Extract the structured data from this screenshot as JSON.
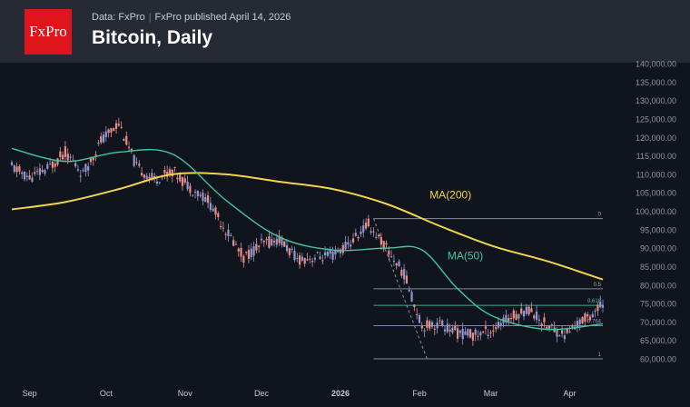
{
  "header": {
    "logo_text": "FxPro",
    "source": "Data: FxPro",
    "published": "FxPro published April 14, 2026",
    "title": "Bitcoin, Daily"
  },
  "colors": {
    "header_bg": "#252a34",
    "plot_bg": "#10141d",
    "logo_bg": "#e0141b",
    "candle_up": "#8f99cf",
    "candle_down": "#e88d8a",
    "ma200": "#f2d44a",
    "ma50": "#3ec79a",
    "fib_line": "#9aa0a8",
    "fib_0618": "#3ec79a",
    "fib_0764": "#8f99cf"
  },
  "chart_data": {
    "type": "line",
    "instrument": "Bitcoin",
    "timeframe": "Daily",
    "x_axis": {
      "ticks": [
        "Sep",
        "Oct",
        "Nov",
        "Dec",
        "2026",
        "Feb",
        "Mar",
        "Apr"
      ],
      "start": "2025-08-25",
      "end": "2026-04-14"
    },
    "y_axis": {
      "ylim": [
        60000,
        140000
      ],
      "step": 5000,
      "position": "right",
      "ticks": [
        "140,000.00",
        "135,000.00",
        "130,000.00",
        "125,000.00",
        "120,000.00",
        "115,000.00",
        "110,000.00",
        "105,000.00",
        "100,000.00",
        "95,000.00",
        "90,000.00",
        "85,000.00",
        "80,000.00",
        "75,000.00",
        "70,000.00",
        "65,000.00",
        "60,000.00"
      ]
    },
    "price_series": {
      "name": "",
      "dates": [
        "2025-08-25",
        "2025-09-01",
        "2025-09-08",
        "2025-09-15",
        "2025-09-22",
        "2025-09-29",
        "2025-10-06",
        "2025-10-13",
        "2025-10-20",
        "2025-10-27",
        "2025-11-03",
        "2025-11-10",
        "2025-11-17",
        "2025-11-24",
        "2025-12-01",
        "2025-12-08",
        "2025-12-15",
        "2025-12-22",
        "2025-12-29",
        "2026-01-05",
        "2026-01-12",
        "2026-01-19",
        "2026-01-26",
        "2026-02-02",
        "2026-02-09",
        "2026-02-16",
        "2026-02-23",
        "2026-03-02",
        "2026-03-09",
        "2026-03-16",
        "2026-03-23",
        "2026-03-30",
        "2026-04-06",
        "2026-04-14"
      ],
      "values": [
        112000,
        109000,
        111500,
        116000,
        110000,
        119000,
        124000,
        112000,
        108500,
        111000,
        106500,
        103000,
        95000,
        87500,
        91000,
        92500,
        87000,
        87500,
        88000,
        91500,
        96500,
        90000,
        83000,
        69000,
        69500,
        67000,
        66500,
        68000,
        71500,
        73500,
        69000,
        66500,
        70500,
        74500
      ]
    },
    "ma200": {
      "name": "MA(200)",
      "dates": [
        "2025-08-25",
        "2025-09-15",
        "2025-10-06",
        "2025-10-27",
        "2025-11-17",
        "2025-12-08",
        "2025-12-29",
        "2026-01-19",
        "2026-02-09",
        "2026-03-02",
        "2026-03-23",
        "2026-04-14"
      ],
      "values": [
        100500,
        102500,
        106000,
        110000,
        110000,
        108000,
        106000,
        102000,
        96000,
        90500,
        86500,
        81500
      ]
    },
    "ma50": {
      "name": "MA(50)",
      "dates": [
        "2025-08-25",
        "2025-09-15",
        "2025-10-06",
        "2025-10-27",
        "2025-11-17",
        "2025-12-08",
        "2025-12-29",
        "2026-01-19",
        "2026-02-02",
        "2026-02-16",
        "2026-03-02",
        "2026-03-23",
        "2026-04-14"
      ],
      "values": [
        117000,
        113500,
        116000,
        115500,
        103000,
        93000,
        89500,
        90000,
        89500,
        79000,
        71500,
        68000,
        69500
      ]
    },
    "fibonacci": {
      "levels": [
        {
          "label": "0",
          "value": 98000
        },
        {
          "label": "0.5",
          "value": 79000
        },
        {
          "label": "0.618",
          "value": 74500
        },
        {
          "label": "0.764",
          "value": 69000
        },
        {
          "label": "1",
          "value": 60000
        }
      ],
      "start": "2026-01-14",
      "end": "2026-04-14"
    },
    "annotations": [
      {
        "text": "MA(200)",
        "date": "2026-02-05",
        "value": 103500
      },
      {
        "text": "MA(50)",
        "date": "2026-02-12",
        "value": 87000
      }
    ],
    "grid": false,
    "legend": "none"
  }
}
